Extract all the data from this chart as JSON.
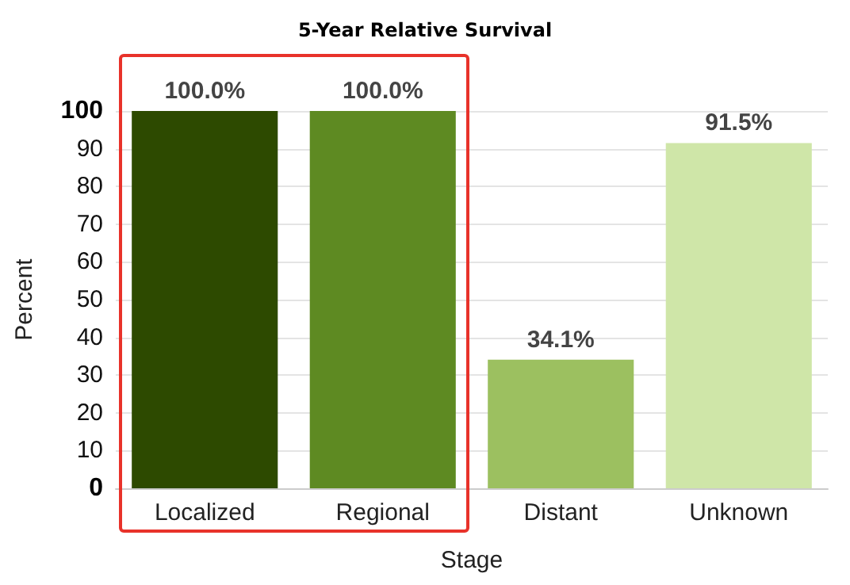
{
  "chart_data": {
    "type": "bar",
    "title": "5-Year Relative Survival",
    "xlabel": "Stage",
    "ylabel": "Percent",
    "categories": [
      "Localized",
      "Regional",
      "Distant",
      "Unknown"
    ],
    "values": [
      100,
      100,
      34.1,
      91.5
    ],
    "colors": [
      "#2d4a00",
      "#5e8a22",
      "#9cc060",
      "#cfe6a8"
    ],
    "value_labels": [
      "100.0%",
      "100.0%",
      "34.1%",
      "91.5%"
    ],
    "ylim": [
      0,
      100
    ],
    "yticks": [
      0,
      10,
      20,
      30,
      40,
      50,
      60,
      70,
      80,
      90,
      100
    ],
    "grid": "y"
  }
}
